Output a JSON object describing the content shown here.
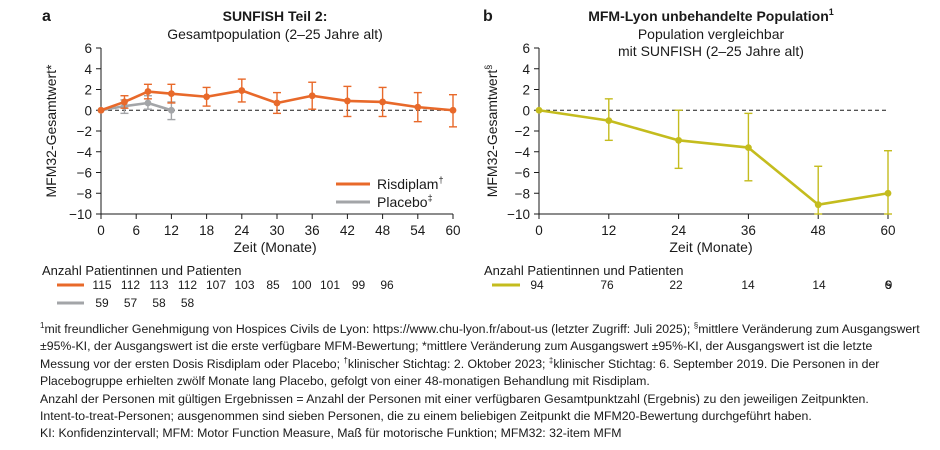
{
  "panel_a": {
    "letter": "a",
    "title": "SUNFISH Teil 2:",
    "subtitle": "Gesamtpopulation (2–25 Jahre alt)",
    "ylabel": "MFM32-Gesamtwert*",
    "xlabel": "Zeit (Monate)",
    "legend": [
      {
        "label": "Risdiplam",
        "mark": "†"
      },
      {
        "label": "Placebo",
        "mark": "‡"
      }
    ],
    "n_title": "Anzahl Patientinnen und Patienten"
  },
  "panel_b": {
    "letter": "b",
    "title": "MFM-Lyon unbehandelte Population",
    "title_mark": "1",
    "subtitle_lines": [
      "Population vergleichbar",
      "mit SUNFISH (2–25 Jahre alt)"
    ],
    "ylabel": "MFM32-Gesamtwert",
    "ylabel_mark": "§",
    "xlabel": "Zeit (Monate)",
    "n_title": "Anzahl Patientinnen und Patienten"
  },
  "colors": {
    "risdiplam": "#e8692a",
    "placebo": "#a3a5a8",
    "lyon": "#c4bc1e",
    "axis": "#1a1a1a"
  },
  "chart_data": [
    {
      "type": "line",
      "title": "SUNFISH Teil 2:",
      "subtitle": "Gesamtpopulation (2–25 Jahre alt)",
      "xlabel": "Zeit (Monate)",
      "ylabel": "MFM32-Gesamtwert*",
      "xlim": [
        0,
        60
      ],
      "ylim": [
        -10,
        6
      ],
      "xticks": [
        0,
        6,
        12,
        18,
        24,
        30,
        36,
        42,
        48,
        54,
        60
      ],
      "yticks": [
        -10,
        -8,
        -6,
        -4,
        -2,
        0,
        2,
        4,
        6
      ],
      "reference_line": {
        "y": 0,
        "style": "dashed"
      },
      "legend_position": "right",
      "series": [
        {
          "name": "Risdiplam†",
          "color": "#e8692a",
          "x": [
            0,
            4,
            8,
            12,
            18,
            24,
            30,
            36,
            42,
            48,
            54,
            60
          ],
          "y": [
            0,
            0.8,
            1.8,
            1.6,
            1.3,
            1.9,
            0.7,
            1.4,
            0.9,
            0.8,
            0.3,
            0
          ],
          "ci_low": [
            0,
            0.2,
            1.1,
            0.7,
            0.4,
            0.8,
            -0.3,
            0.1,
            -0.6,
            -0.6,
            -1.1,
            -1.6
          ],
          "ci_high": [
            0,
            1.4,
            2.5,
            2.5,
            2.2,
            3.0,
            1.7,
            2.7,
            2.3,
            2.2,
            1.7,
            1.5
          ],
          "n": [
            115,
            112,
            113,
            112,
            107,
            103,
            85,
            100,
            101,
            99,
            96,
            94
          ]
        },
        {
          "name": "Placebo‡",
          "color": "#a3a5a8",
          "x": [
            0,
            4,
            8,
            12
          ],
          "y": [
            0,
            0.4,
            0.7,
            0.0
          ],
          "ci_low": [
            0,
            -0.3,
            0.1,
            -0.9
          ],
          "ci_high": [
            0,
            1.0,
            1.4,
            0.8
          ],
          "n": [
            59,
            57,
            58,
            58
          ]
        }
      ]
    },
    {
      "type": "line",
      "title": "MFM-Lyon unbehandelte Population",
      "subtitle": "Population vergleichbar mit SUNFISH (2–25 Jahre alt)",
      "xlabel": "Zeit (Monate)",
      "ylabel": "MFM32-Gesamtwert§",
      "xlim": [
        0,
        60
      ],
      "ylim": [
        -10,
        6
      ],
      "xticks": [
        0,
        12,
        24,
        36,
        48,
        60
      ],
      "yticks": [
        -10,
        -8,
        -6,
        -4,
        -2,
        0,
        2,
        4,
        6
      ],
      "reference_line": {
        "y": 0,
        "style": "dashed"
      },
      "series": [
        {
          "color": "#c4bc1e",
          "x": [
            0,
            12,
            24,
            36,
            48,
            60
          ],
          "y": [
            0,
            -1.0,
            -2.9,
            -3.6,
            -9.1,
            -8.0
          ],
          "ci_low": [
            0,
            -2.9,
            -5.6,
            -6.8,
            -10.0,
            -10.0
          ],
          "ci_high": [
            0,
            1.1,
            0,
            -0.3,
            -5.4,
            -3.9
          ],
          "n": [
            76,
            22,
            14,
            14,
            9,
            6
          ]
        }
      ]
    }
  ],
  "footnotes": [
    [
      {
        "t": "1",
        "sup": true
      },
      {
        "t": "mit freundlicher Genehmigung von Hospices Civils de Lyon: https://www.chu-lyon.fr/about-us (letzter Zugriff: Juli 2025); "
      },
      {
        "t": "§",
        "sup": true
      },
      {
        "t": "mittlere Veränderung zum Ausgangswert ±95%-KI, der Ausgangswert ist die erste verfügbare MFM-Bewertung; *mittlere Veränderung zum Ausgangswert ±95%-KI, der Ausgangswert ist die letzte Messung vor der ersten Dosis Risdiplam oder Placebo; "
      },
      {
        "t": "†",
        "sup": true
      },
      {
        "t": "klinischer Stichtag: 2. Oktober 2023; "
      },
      {
        "t": "‡",
        "sup": true
      },
      {
        "t": "klinischer Stichtag: 6. September 2019. Die Personen in der Placebogruppe erhielten zwölf Monate lang Placebo, gefolgt von einer 48-monatigen Behandlung mit Risdiplam."
      }
    ],
    [
      {
        "t": "Anzahl der Personen mit gültigen Ergebnissen = Anzahl der Personen mit einer verfügbaren Gesamtpunktzahl (Ergebnis) zu den jeweiligen Zeitpunkten."
      }
    ],
    [
      {
        "t": "Intent-to-treat-Personen; ausgenommen sind sieben Personen, die zu einem beliebigen Zeitpunkt die MFM20-Bewertung durchgeführt haben."
      }
    ],
    [
      {
        "t": "KI: Konfidenzintervall; MFM: Motor Function Measure, Maß für motorische Funktion; MFM32: 32-item MFM"
      }
    ]
  ]
}
